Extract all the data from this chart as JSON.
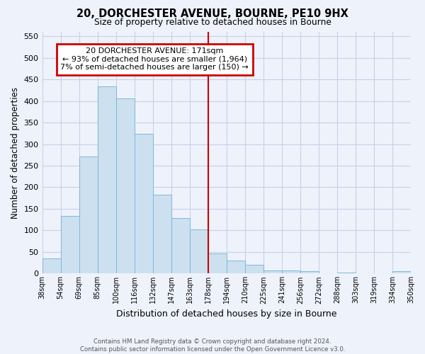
{
  "title": "20, DORCHESTER AVENUE, BOURNE, PE10 9HX",
  "subtitle": "Size of property relative to detached houses in Bourne",
  "xlabel": "Distribution of detached houses by size in Bourne",
  "ylabel": "Number of detached properties",
  "tick_labels": [
    "38sqm",
    "54sqm",
    "69sqm",
    "85sqm",
    "100sqm",
    "116sqm",
    "132sqm",
    "147sqm",
    "163sqm",
    "178sqm",
    "194sqm",
    "210sqm",
    "225sqm",
    "241sqm",
    "256sqm",
    "272sqm",
    "288sqm",
    "303sqm",
    "319sqm",
    "334sqm",
    "350sqm"
  ],
  "bar_values": [
    35,
    133,
    272,
    433,
    405,
    323,
    183,
    128,
    103,
    46,
    30,
    20,
    7,
    8,
    5,
    0,
    3,
    0,
    0,
    5
  ],
  "bar_color": "#cce0f0",
  "bar_edge_color": "#7fb8d8",
  "vline_x": 9.0,
  "vline_color": "#cc0000",
  "ylim": [
    0,
    560
  ],
  "yticks": [
    0,
    50,
    100,
    150,
    200,
    250,
    300,
    350,
    400,
    450,
    500,
    550
  ],
  "annotation_title": "20 DORCHESTER AVENUE: 171sqm",
  "annotation_line1": "← 93% of detached houses are smaller (1,964)",
  "annotation_line2": "7% of semi-detached houses are larger (150) →",
  "annotation_box_color": "#ffffff",
  "annotation_box_edge": "#cc0000",
  "footer_line1": "Contains HM Land Registry data © Crown copyright and database right 2024.",
  "footer_line2": "Contains public sector information licensed under the Open Government Licence v3.0.",
  "bg_color": "#eef2fb",
  "grid_color": "#c8d0e8"
}
